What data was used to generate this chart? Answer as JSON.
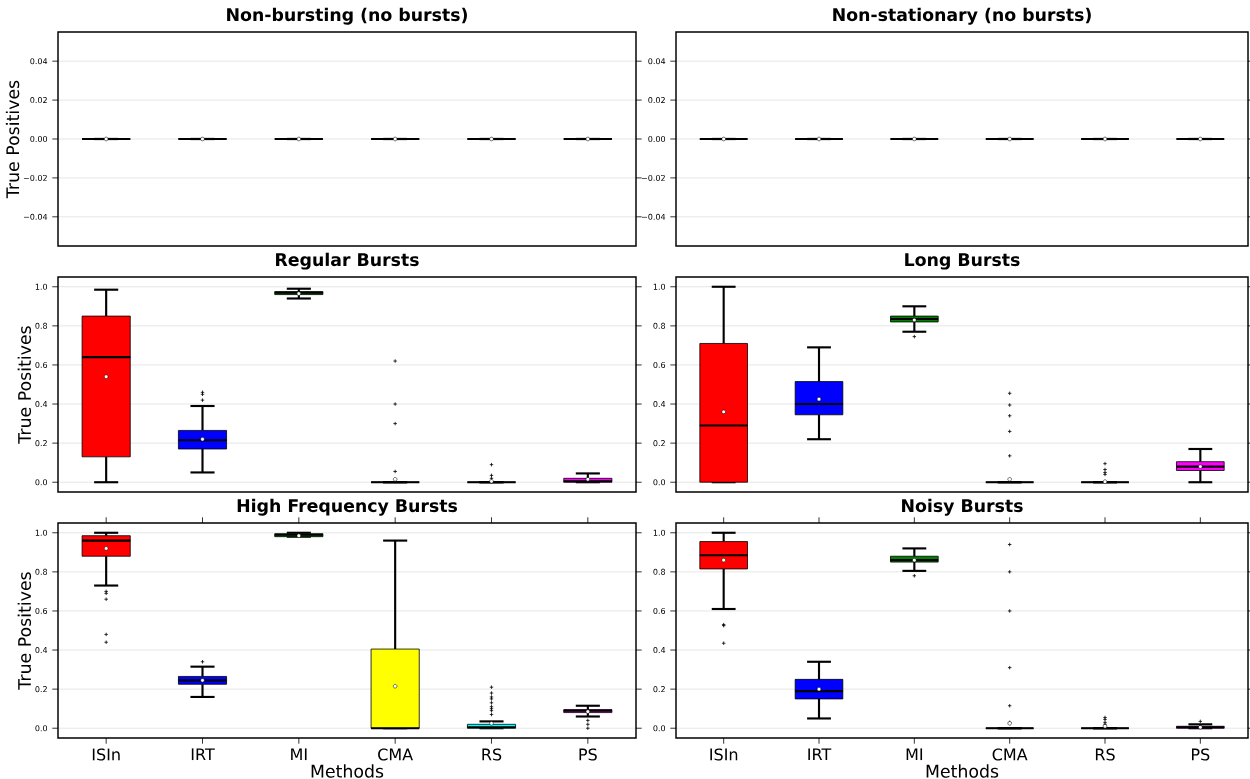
{
  "chart_data": [
    {
      "type": "box",
      "title": "Non-bursting (no bursts)",
      "ylabel": "True Positives",
      "categories": [
        null,
        null,
        null,
        null,
        null,
        null
      ],
      "ylim": [
        -0.055,
        0.055
      ],
      "yticks": [
        {
          "value": -0.04,
          "label": "−0.04"
        },
        {
          "value": -0.02,
          "label": "−0.02"
        },
        {
          "value": 0,
          "label": "0.00"
        },
        {
          "value": 0.02,
          "label": "0.02"
        },
        {
          "value": 0.04,
          "label": "0.04"
        }
      ],
      "grid": "y",
      "tick_labels": "y",
      "boxes": [
        {
          "low": 0,
          "q1": 0,
          "median": 0,
          "q3": 0,
          "high": 0,
          "mean": 0
        },
        {
          "low": 0,
          "q1": 0,
          "median": 0,
          "q3": 0,
          "high": 0,
          "mean": 0
        },
        {
          "low": 0,
          "q1": 0,
          "median": 0,
          "q3": 0,
          "high": 0,
          "mean": 0
        },
        {
          "low": 0,
          "q1": 0,
          "median": 0,
          "q3": 0,
          "high": 0,
          "mean": 0
        },
        {
          "low": 0,
          "q1": 0,
          "median": 0,
          "q3": 0,
          "high": 0,
          "mean": 0
        },
        {
          "low": 0,
          "q1": 0,
          "median": 0,
          "q3": 0,
          "high": 0,
          "mean": 0
        }
      ]
    },
    {
      "type": "box",
      "title": "Non-stationary (no bursts)",
      "categories": [
        null,
        null,
        null,
        null,
        null,
        null
      ],
      "ylim": [
        -0.055,
        0.055
      ],
      "yticks": [
        {
          "value": -0.04,
          "label": "−0.04"
        },
        {
          "value": -0.02,
          "label": "−0.02"
        },
        {
          "value": 0,
          "label": "0.00"
        },
        {
          "value": 0.02,
          "label": "0.02"
        },
        {
          "value": 0.04,
          "label": "0.04"
        }
      ],
      "grid": "y",
      "tick_labels": "y",
      "boxes": [
        {
          "low": 0,
          "q1": 0,
          "median": 0,
          "q3": 0,
          "high": 0,
          "mean": 0
        },
        {
          "low": 0,
          "q1": 0,
          "median": 0,
          "q3": 0,
          "high": 0,
          "mean": 0
        },
        {
          "low": 0,
          "q1": 0,
          "median": 0,
          "q3": 0,
          "high": 0,
          "mean": 0
        },
        {
          "low": 0,
          "q1": 0,
          "median": 0,
          "q3": 0,
          "high": 0,
          "mean": 0
        },
        {
          "low": 0,
          "q1": 0,
          "median": 0,
          "q3": 0,
          "high": 0,
          "mean": 0
        },
        {
          "low": 0,
          "q1": 0,
          "median": 0,
          "q3": 0,
          "high": 0,
          "mean": 0
        }
      ]
    },
    {
      "type": "box",
      "title": "Regular Bursts",
      "ylabel": "True Positives",
      "categories": [
        null,
        null,
        null,
        null,
        null,
        null
      ],
      "colors": [
        "#ff0000",
        "#0000ff",
        "#008000",
        null,
        null,
        "#ff00ff"
      ],
      "ylim": [
        -0.05,
        1.05
      ],
      "yticks": [
        {
          "value": 0,
          "label": "0.0"
        },
        {
          "value": 0.2,
          "label": "0.2"
        },
        {
          "value": 0.4,
          "label": "0.4"
        },
        {
          "value": 0.6,
          "label": "0.6"
        },
        {
          "value": 0.8,
          "label": "0.8"
        },
        {
          "value": 1,
          "label": "1.0"
        }
      ],
      "grid": "y",
      "tick_labels": "y",
      "boxes": [
        {
          "low": 0,
          "q1": 0.13,
          "median": 0.64,
          "q3": 0.85,
          "high": 0.985,
          "mean": 0.54
        },
        {
          "low": 0.05,
          "q1": 0.17,
          "median": 0.215,
          "q3": 0.265,
          "high": 0.39,
          "mean": 0.22,
          "outliers": [
            0.42,
            0.45,
            0.46
          ]
        },
        {
          "low": 0.94,
          "q1": 0.96,
          "median": 0.97,
          "q3": 0.975,
          "high": 0.99,
          "mean": 0.965
        },
        {
          "low": 0,
          "q1": 0,
          "median": 0,
          "q3": 0,
          "high": 0,
          "mean": 0.015,
          "outliers": [
            0.055,
            0.3,
            0.4,
            0.62
          ]
        },
        {
          "low": 0,
          "q1": 0,
          "median": 0,
          "q3": 0,
          "high": 0,
          "mean": 0.005,
          "outliers": [
            0.02,
            0.035,
            0.09
          ]
        },
        {
          "low": 0,
          "q1": 0,
          "median": 0.005,
          "q3": 0.02,
          "high": 0.045,
          "mean": 0.015
        }
      ]
    },
    {
      "type": "box",
      "title": "Long Bursts",
      "categories": [
        null,
        null,
        null,
        null,
        null,
        null
      ],
      "colors": [
        "#ff0000",
        "#0000ff",
        "#008000",
        null,
        null,
        "#ff00ff"
      ],
      "ylim": [
        -0.05,
        1.05
      ],
      "yticks": [
        {
          "value": 0,
          "label": "0.0"
        },
        {
          "value": 0.2,
          "label": "0.2"
        },
        {
          "value": 0.4,
          "label": "0.4"
        },
        {
          "value": 0.6,
          "label": "0.6"
        },
        {
          "value": 0.8,
          "label": "0.8"
        },
        {
          "value": 1,
          "label": "1.0"
        }
      ],
      "grid": "y",
      "tick_labels": "y",
      "boxes": [
        {
          "low": 0,
          "q1": 0,
          "median": 0.29,
          "q3": 0.71,
          "high": 1.0,
          "mean": 0.36
        },
        {
          "low": 0.22,
          "q1": 0.345,
          "median": 0.4,
          "q3": 0.515,
          "high": 0.69,
          "mean": 0.425
        },
        {
          "low": 0.77,
          "q1": 0.82,
          "median": 0.835,
          "q3": 0.85,
          "high": 0.9,
          "mean": 0.83,
          "outliers": [
            0.745
          ]
        },
        {
          "low": 0,
          "q1": 0,
          "median": 0,
          "q3": 0,
          "high": 0,
          "mean": 0.015,
          "outliers": [
            0.135,
            0.26,
            0.34,
            0.395,
            0.455
          ]
        },
        {
          "low": 0,
          "q1": 0,
          "median": 0,
          "q3": 0,
          "high": 0,
          "mean": 0.003,
          "outliers": [
            0.04,
            0.05,
            0.065,
            0.095
          ]
        },
        {
          "low": 0,
          "q1": 0.06,
          "median": 0.08,
          "q3": 0.105,
          "high": 0.17,
          "mean": 0.08
        }
      ]
    },
    {
      "type": "box",
      "title": "High Frequency Bursts",
      "xlabel": "Methods",
      "ylabel": "True Positives",
      "categories": [
        "ISIn",
        "IRT",
        "MI",
        "CMA",
        "RS",
        "PS"
      ],
      "colors": [
        "#ff0000",
        "#0000ff",
        "#008000",
        "#ffff00",
        "#00ffff",
        "#ff00ff"
      ],
      "ylim": [
        -0.05,
        1.05
      ],
      "yticks": [
        {
          "value": 0,
          "label": "0.0"
        },
        {
          "value": 0.2,
          "label": "0.2"
        },
        {
          "value": 0.4,
          "label": "0.4"
        },
        {
          "value": 0.6,
          "label": "0.6"
        },
        {
          "value": 0.8,
          "label": "0.8"
        },
        {
          "value": 1,
          "label": "1.0"
        }
      ],
      "grid": "y",
      "boxes": [
        {
          "low": 0.73,
          "q1": 0.88,
          "median": 0.96,
          "q3": 0.985,
          "high": 1.0,
          "mean": 0.92,
          "outliers": [
            0.44,
            0.48,
            0.66,
            0.69,
            0.7
          ]
        },
        {
          "low": 0.16,
          "q1": 0.225,
          "median": 0.245,
          "q3": 0.265,
          "high": 0.315,
          "mean": 0.245,
          "outliers": [
            0.34
          ]
        },
        {
          "low": 0.98,
          "q1": 0.98,
          "median": 0.99,
          "q3": 0.995,
          "high": 1.0,
          "mean": 0.985
        },
        {
          "low": 0,
          "q1": 0,
          "median": 0,
          "q3": 0.405,
          "high": 0.96,
          "mean": 0.215
        },
        {
          "low": 0,
          "q1": 0,
          "median": 0.005,
          "q3": 0.02,
          "high": 0.035,
          "mean": 0.025,
          "outliers": [
            0.07,
            0.09,
            0.1,
            0.11,
            0.13,
            0.15,
            0.16,
            0.18,
            0.21
          ]
        },
        {
          "low": 0.06,
          "q1": 0.08,
          "median": 0.09,
          "q3": 0.095,
          "high": 0.115,
          "mean": 0.085,
          "outliers": [
            0.0,
            0.02,
            0.04
          ]
        }
      ]
    },
    {
      "type": "box",
      "title": "Noisy Bursts",
      "xlabel": "Methods",
      "categories": [
        "ISIn",
        "IRT",
        "MI",
        "CMA",
        "RS",
        "PS"
      ],
      "colors": [
        "#ff0000",
        "#0000ff",
        "#008000",
        null,
        null,
        "#ff00ff"
      ],
      "ylim": [
        -0.05,
        1.05
      ],
      "yticks": [
        {
          "value": 0,
          "label": "0.0"
        },
        {
          "value": 0.2,
          "label": "0.2"
        },
        {
          "value": 0.4,
          "label": "0.4"
        },
        {
          "value": 0.6,
          "label": "0.6"
        },
        {
          "value": 0.8,
          "label": "0.8"
        },
        {
          "value": 1,
          "label": "1.0"
        }
      ],
      "grid": "y",
      "boxes": [
        {
          "low": 0.61,
          "q1": 0.815,
          "median": 0.885,
          "q3": 0.955,
          "high": 1.0,
          "mean": 0.86,
          "outliers": [
            0.435,
            0.525,
            0.53
          ]
        },
        {
          "low": 0.05,
          "q1": 0.15,
          "median": 0.19,
          "q3": 0.25,
          "high": 0.34,
          "mean": 0.2
        },
        {
          "low": 0.805,
          "q1": 0.85,
          "median": 0.86,
          "q3": 0.88,
          "high": 0.92,
          "mean": 0.86,
          "outliers": [
            0.78
          ]
        },
        {
          "low": 0,
          "q1": 0,
          "median": 0,
          "q3": 0,
          "high": 0,
          "mean": 0.025,
          "outliers": [
            0.03,
            0.115,
            0.31,
            0.6,
            0.8,
            0.94
          ]
        },
        {
          "low": 0,
          "q1": 0,
          "median": 0,
          "q3": 0,
          "high": 0,
          "mean": 0.01,
          "outliers": [
            0.02,
            0.03,
            0.045,
            0.055
          ]
        },
        {
          "low": 0,
          "q1": 0,
          "median": 0.005,
          "q3": 0.01,
          "high": 0.02,
          "mean": 0.005,
          "outliers": [
            0.035
          ]
        }
      ]
    }
  ]
}
